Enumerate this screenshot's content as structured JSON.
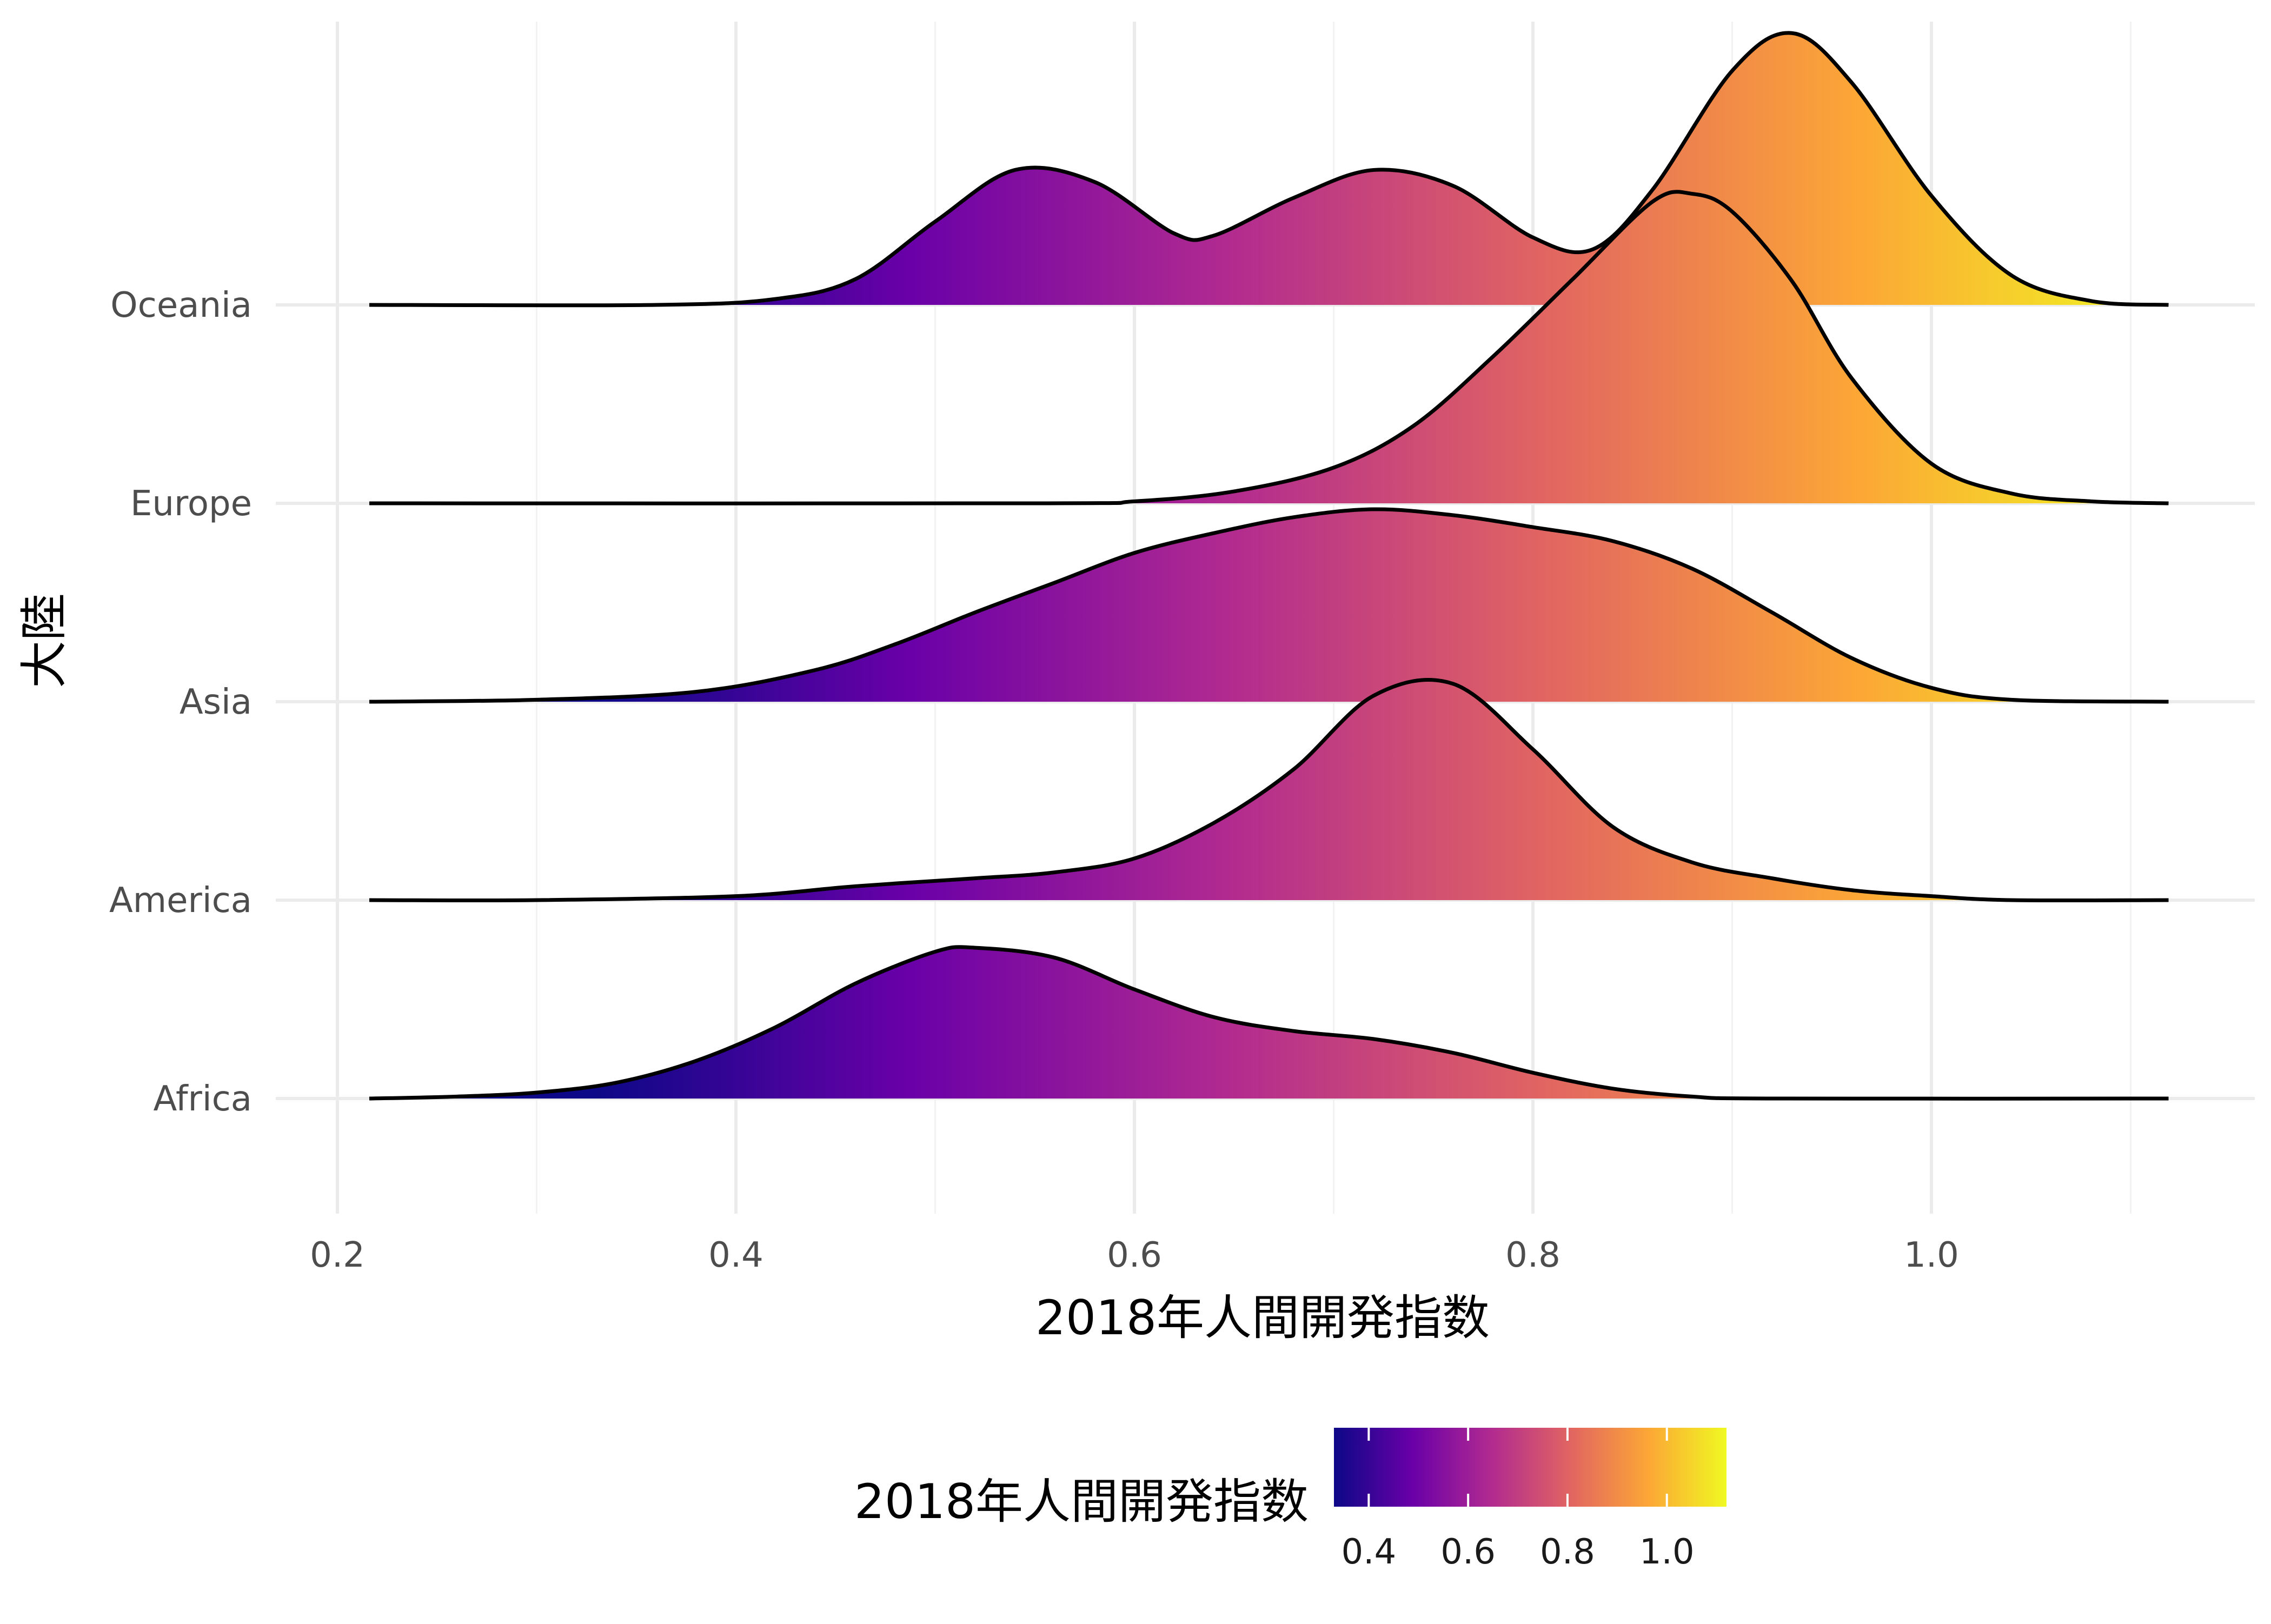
{
  "chart_data": {
    "type": "ridgeline",
    "xlabel": "2018年人間開発指数",
    "ylabel": "大陸",
    "xlim": [
      0.17,
      1.14
    ],
    "x_ticks": [
      "0.2",
      "0.4",
      "0.6",
      "0.8",
      "1.0"
    ],
    "x_tick_values": [
      0.2,
      0.4,
      0.6,
      0.8,
      1.0
    ],
    "x_minor_ticks": [
      0.3,
      0.5,
      0.7,
      0.9,
      1.1
    ],
    "grid": true,
    "categories": [
      "Africa",
      "America",
      "Asia",
      "Europe",
      "Oceania"
    ],
    "density_x_range": [
      0.216,
      1.119
    ],
    "series": [
      {
        "name": "Africa",
        "points": [
          [
            0.216,
            0
          ],
          [
            0.26,
            0.01
          ],
          [
            0.3,
            0.03
          ],
          [
            0.34,
            0.08
          ],
          [
            0.38,
            0.19
          ],
          [
            0.42,
            0.36
          ],
          [
            0.46,
            0.58
          ],
          [
            0.5,
            0.74
          ],
          [
            0.52,
            0.76
          ],
          [
            0.56,
            0.71
          ],
          [
            0.6,
            0.55
          ],
          [
            0.64,
            0.41
          ],
          [
            0.68,
            0.34
          ],
          [
            0.72,
            0.3
          ],
          [
            0.76,
            0.23
          ],
          [
            0.8,
            0.13
          ],
          [
            0.84,
            0.05
          ],
          [
            0.88,
            0.01
          ],
          [
            0.92,
            0
          ],
          [
            1.119,
            0
          ]
        ]
      },
      {
        "name": "America",
        "points": [
          [
            0.216,
            0
          ],
          [
            0.3,
            0
          ],
          [
            0.4,
            0.02
          ],
          [
            0.46,
            0.07
          ],
          [
            0.52,
            0.11
          ],
          [
            0.56,
            0.14
          ],
          [
            0.6,
            0.21
          ],
          [
            0.64,
            0.39
          ],
          [
            0.68,
            0.66
          ],
          [
            0.72,
            1.03
          ],
          [
            0.76,
            1.09
          ],
          [
            0.8,
            0.76
          ],
          [
            0.84,
            0.37
          ],
          [
            0.88,
            0.19
          ],
          [
            0.92,
            0.11
          ],
          [
            0.96,
            0.05
          ],
          [
            1.0,
            0.02
          ],
          [
            1.04,
            0
          ],
          [
            1.119,
            0
          ]
        ]
      },
      {
        "name": "Asia",
        "points": [
          [
            0.216,
            0
          ],
          [
            0.3,
            0.01
          ],
          [
            0.38,
            0.05
          ],
          [
            0.44,
            0.16
          ],
          [
            0.48,
            0.29
          ],
          [
            0.52,
            0.45
          ],
          [
            0.56,
            0.6
          ],
          [
            0.6,
            0.75
          ],
          [
            0.64,
            0.85
          ],
          [
            0.68,
            0.93
          ],
          [
            0.72,
            0.97
          ],
          [
            0.76,
            0.94
          ],
          [
            0.8,
            0.88
          ],
          [
            0.84,
            0.81
          ],
          [
            0.88,
            0.67
          ],
          [
            0.92,
            0.45
          ],
          [
            0.96,
            0.22
          ],
          [
            1.0,
            0.07
          ],
          [
            1.04,
            0.01
          ],
          [
            1.119,
            0
          ]
        ]
      },
      {
        "name": "Europe",
        "points": [
          [
            0.216,
            0
          ],
          [
            0.55,
            0
          ],
          [
            0.6,
            0.01
          ],
          [
            0.65,
            0.06
          ],
          [
            0.7,
            0.18
          ],
          [
            0.74,
            0.39
          ],
          [
            0.78,
            0.74
          ],
          [
            0.82,
            1.13
          ],
          [
            0.86,
            1.52
          ],
          [
            0.88,
            1.56
          ],
          [
            0.9,
            1.47
          ],
          [
            0.93,
            1.12
          ],
          [
            0.96,
            0.63
          ],
          [
            1.0,
            0.2
          ],
          [
            1.04,
            0.05
          ],
          [
            1.08,
            0.01
          ],
          [
            1.119,
            0
          ]
        ]
      },
      {
        "name": "Oceania",
        "points": [
          [
            0.216,
            0
          ],
          [
            0.36,
            0
          ],
          [
            0.42,
            0.03
          ],
          [
            0.46,
            0.13
          ],
          [
            0.5,
            0.42
          ],
          [
            0.54,
            0.68
          ],
          [
            0.58,
            0.62
          ],
          [
            0.62,
            0.36
          ],
          [
            0.64,
            0.35
          ],
          [
            0.68,
            0.54
          ],
          [
            0.72,
            0.68
          ],
          [
            0.76,
            0.6
          ],
          [
            0.8,
            0.34
          ],
          [
            0.83,
            0.28
          ],
          [
            0.86,
            0.58
          ],
          [
            0.9,
            1.18
          ],
          [
            0.93,
            1.37
          ],
          [
            0.96,
            1.12
          ],
          [
            1.0,
            0.55
          ],
          [
            1.04,
            0.15
          ],
          [
            1.08,
            0.02
          ],
          [
            1.119,
            0
          ]
        ]
      }
    ],
    "colorbar": {
      "title": "2018年人間開発指数",
      "range": [
        0.33,
        1.12
      ],
      "tick_labels": [
        "0.4",
        "0.6",
        "0.8",
        "1.0"
      ],
      "tick_values": [
        0.4,
        0.6,
        0.8,
        1.0
      ],
      "palette": "plasma",
      "stops": [
        "#0d0887",
        "#6a00a8",
        "#b12a90",
        "#e16462",
        "#fca636",
        "#f0f921"
      ]
    },
    "legend_position": "bottom"
  }
}
